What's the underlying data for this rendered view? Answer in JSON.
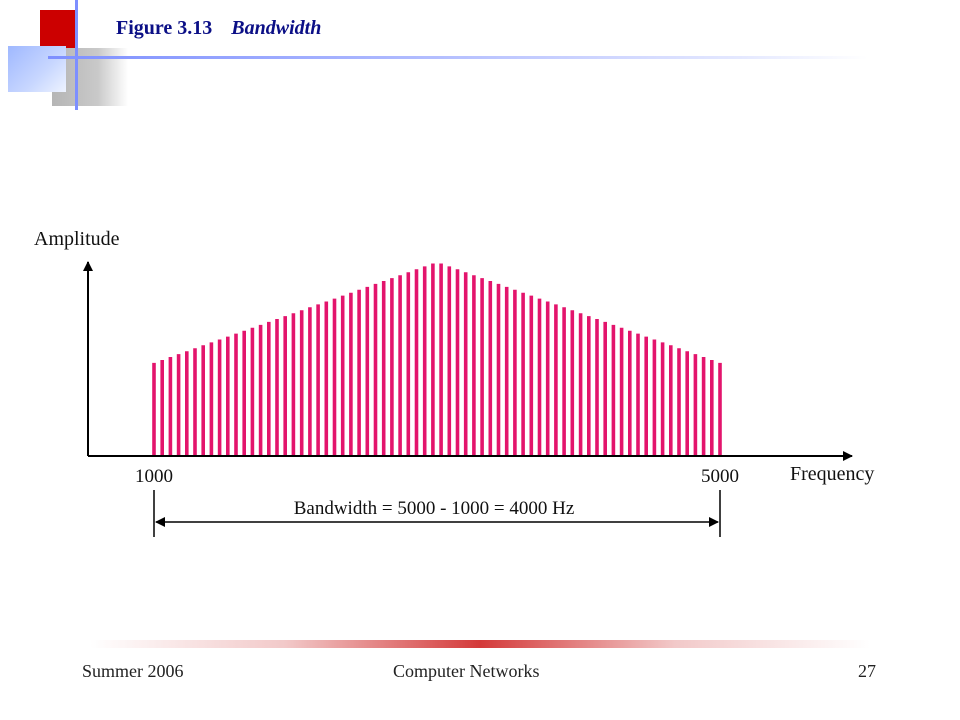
{
  "slide": {
    "figure_number": "Figure 3.13",
    "figure_title": "Bandwidth"
  },
  "footer": {
    "left": "Summer 2006",
    "center": "Computer Networks",
    "right": "27"
  },
  "chart_data": {
    "type": "bar",
    "title": "",
    "xlabel": "Frequency",
    "ylabel": "Amplitude",
    "x_ticks": [
      {
        "value": 1000,
        "label": "1000"
      },
      {
        "value": 5000,
        "label": "5000"
      }
    ],
    "spectrum": {
      "x_start": 1000,
      "x_peak": 3000,
      "x_end": 5000,
      "relative_amplitude_edges": 0.48,
      "relative_amplitude_peak": 1.0,
      "line_count": 70
    },
    "annotation": "Bandwidth = 5000 - 1000 = 4000 Hz",
    "colors": {
      "spectrum": "#e3146c",
      "axis": "#000000"
    }
  }
}
